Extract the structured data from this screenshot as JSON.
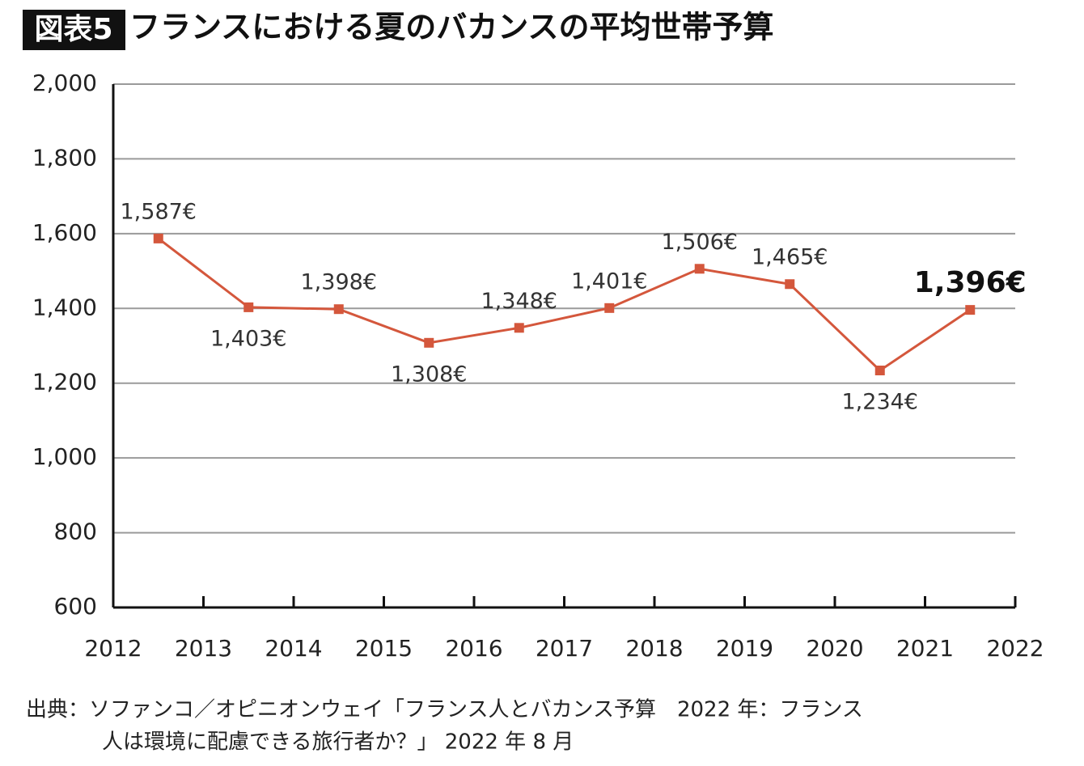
{
  "chart_data": {
    "type": "line",
    "badge": "図表5",
    "title": "フランスにおける夏のバカンスの平均世帯予算",
    "x": [
      2012.5,
      2013.5,
      2014.5,
      2015.5,
      2016.5,
      2017.5,
      2018.5,
      2019.5,
      2020.5,
      2021.5
    ],
    "values": [
      1587,
      1403,
      1398,
      1308,
      1348,
      1401,
      1506,
      1465,
      1234,
      1396
    ],
    "value_labels": [
      "1,587€",
      "1,403€",
      "1,398€",
      "1,308€",
      "1,348€",
      "1,401€",
      "1,506€",
      "1,465€",
      "1,234€",
      "1,396€"
    ],
    "color": "#d4573c",
    "xlim": [
      2012,
      2022
    ],
    "xticks": [
      2012,
      2013,
      2014,
      2015,
      2016,
      2017,
      2018,
      2019,
      2020,
      2021,
      2022
    ],
    "ylim": [
      600,
      2000
    ],
    "yticks": [
      600,
      {
        "value": 800,
        "label": "800"
      },
      {
        "value": 1000,
        "label": "1,000"
      },
      {
        "value": 1200,
        "label": "1,200"
      },
      {
        "value": 1400,
        "label": "1,400"
      },
      {
        "value": 1600,
        "label": "1,600"
      },
      {
        "value": 1800,
        "label": "1,800"
      },
      {
        "value": 2000,
        "label": "2,000"
      }
    ],
    "grid": true,
    "source": [
      "出典：ソファンコ／オピニオンウェイ「フランス人とバカンス予算　2022 年：フランス",
      "人は環境に配慮できる旅行者か？」 2022 年 8 月"
    ]
  }
}
